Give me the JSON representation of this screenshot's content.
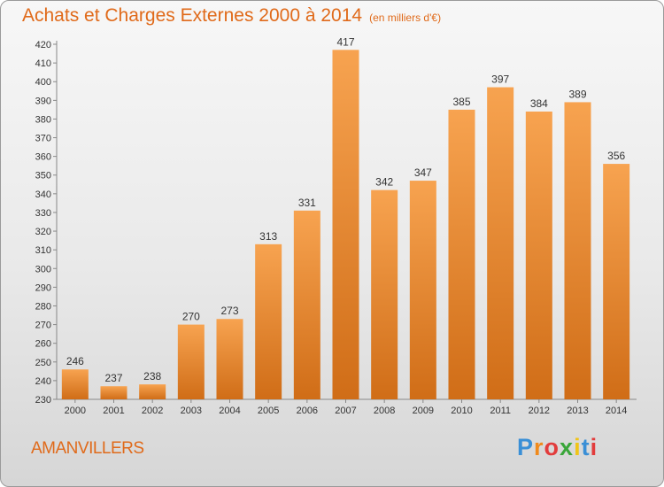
{
  "chart_data": {
    "type": "bar",
    "title": "Achats et Charges Externes 2000 à 2014",
    "subtitle": "(en milliers d'€)",
    "categories": [
      "2000",
      "2001",
      "2002",
      "2003",
      "2004",
      "2005",
      "2006",
      "2007",
      "2008",
      "2009",
      "2010",
      "2011",
      "2012",
      "2013",
      "2014"
    ],
    "values": [
      246,
      237,
      238,
      270,
      273,
      313,
      331,
      417,
      342,
      347,
      385,
      397,
      384,
      389,
      356
    ],
    "ylim": [
      230,
      420
    ],
    "ytick_step": 10,
    "grid": false,
    "bar_color_top": "#f7a350",
    "bar_color_bottom": "#d06d17"
  },
  "location": "AMANVILLERS",
  "brand": {
    "letters": [
      "P",
      "r",
      "o",
      "x",
      "i",
      "t",
      "i"
    ],
    "colors": [
      "#3a8fd6",
      "#f08a1c",
      "#e23c3c",
      "#3aa63a",
      "#f0c419",
      "#3a8fd6",
      "#e23c3c"
    ]
  }
}
